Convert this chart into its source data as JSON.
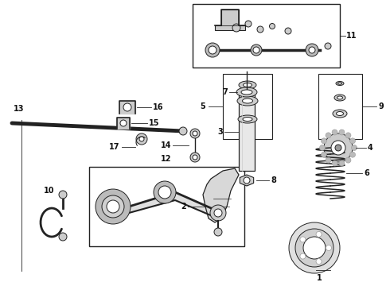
{
  "bg_color": "#ffffff",
  "fig_width": 4.9,
  "fig_height": 3.6,
  "dpi": 100,
  "line_color": "#222222",
  "label_fontsize": 7.0,
  "label_fontweight": "bold"
}
